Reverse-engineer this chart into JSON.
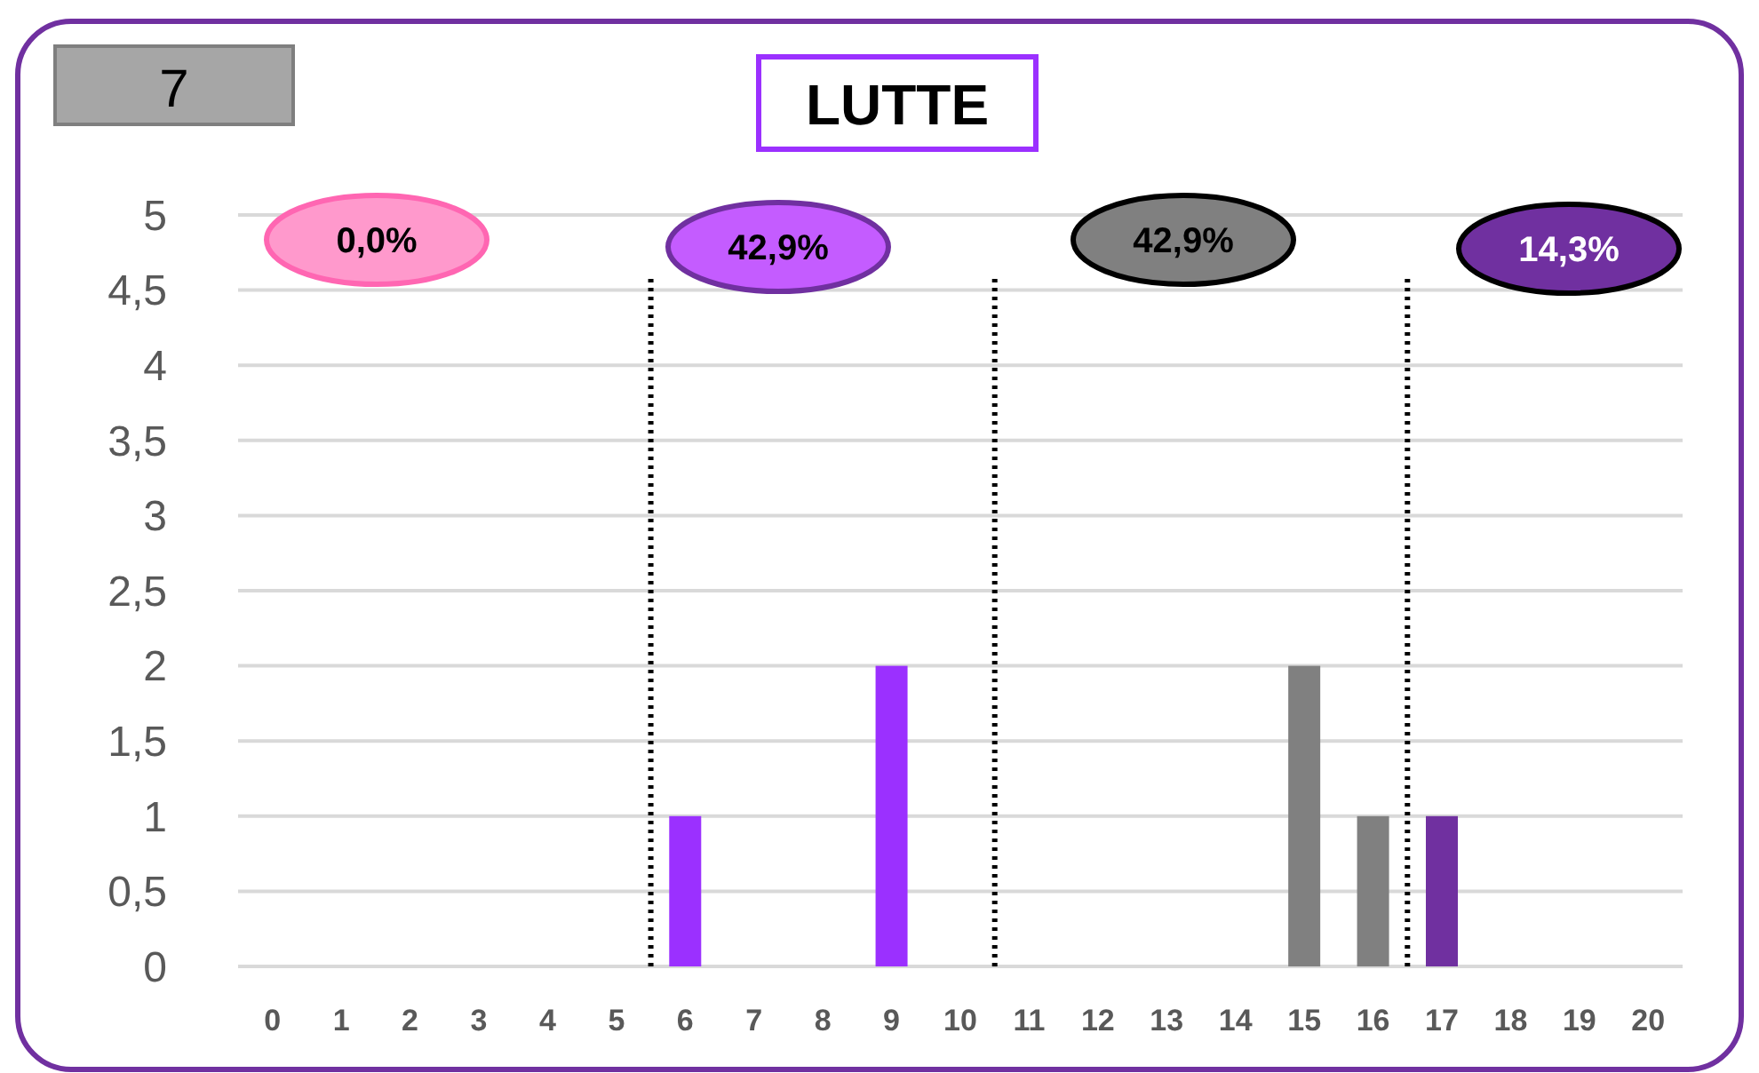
{
  "chart_data": {
    "type": "bar",
    "title": "LUTTE",
    "x": [
      0,
      1,
      2,
      3,
      4,
      5,
      6,
      7,
      8,
      9,
      10,
      11,
      12,
      13,
      14,
      15,
      16,
      17,
      18,
      19,
      20
    ],
    "values": [
      0,
      0,
      0,
      0,
      0,
      0,
      1,
      0,
      0,
      2,
      0,
      0,
      0,
      0,
      0,
      2,
      1,
      1,
      0,
      0,
      0
    ],
    "colors": [
      "#9b30ff",
      "#9b30ff",
      "#9b30ff",
      "#9b30ff",
      "#9b30ff",
      "#9b30ff",
      "#9b30ff",
      "#9b30ff",
      "#9b30ff",
      "#9b30ff",
      "#9b30ff",
      "#808080",
      "#808080",
      "#808080",
      "#808080",
      "#808080",
      "#808080",
      "#7030a0",
      "#7030a0",
      "#7030a0",
      "#7030a0"
    ],
    "xlim": [
      -0.5,
      20.5
    ],
    "xticks": [
      0,
      1,
      2,
      3,
      4,
      5,
      6,
      7,
      8,
      9,
      10,
      11,
      12,
      13,
      14,
      15,
      16,
      17,
      18,
      19,
      20
    ],
    "ylim": [
      0,
      5
    ],
    "yticks": [
      0,
      {
        "value": 0.5,
        "label": "0,5"
      },
      1,
      {
        "value": 1.5,
        "label": "1,5"
      },
      2,
      {
        "value": 2.5,
        "label": "2,5"
      },
      3,
      {
        "value": 3.5,
        "label": "3,5"
      },
      4,
      {
        "value": 4.5,
        "label": "4,5"
      },
      5
    ],
    "grid": "y",
    "ref_lines": [
      {
        "axis": "x",
        "value": 5.5,
        "line_style": "dotted",
        "color": "#000000"
      },
      {
        "axis": "x",
        "value": 10.5,
        "line_style": "dotted",
        "color": "#000000"
      },
      {
        "axis": "x",
        "value": 16.5,
        "line_style": "dotted",
        "color": "#000000"
      }
    ],
    "annotations": [
      "7",
      "0,0%",
      "42,9%",
      "42,9%",
      "14,3%"
    ]
  }
}
